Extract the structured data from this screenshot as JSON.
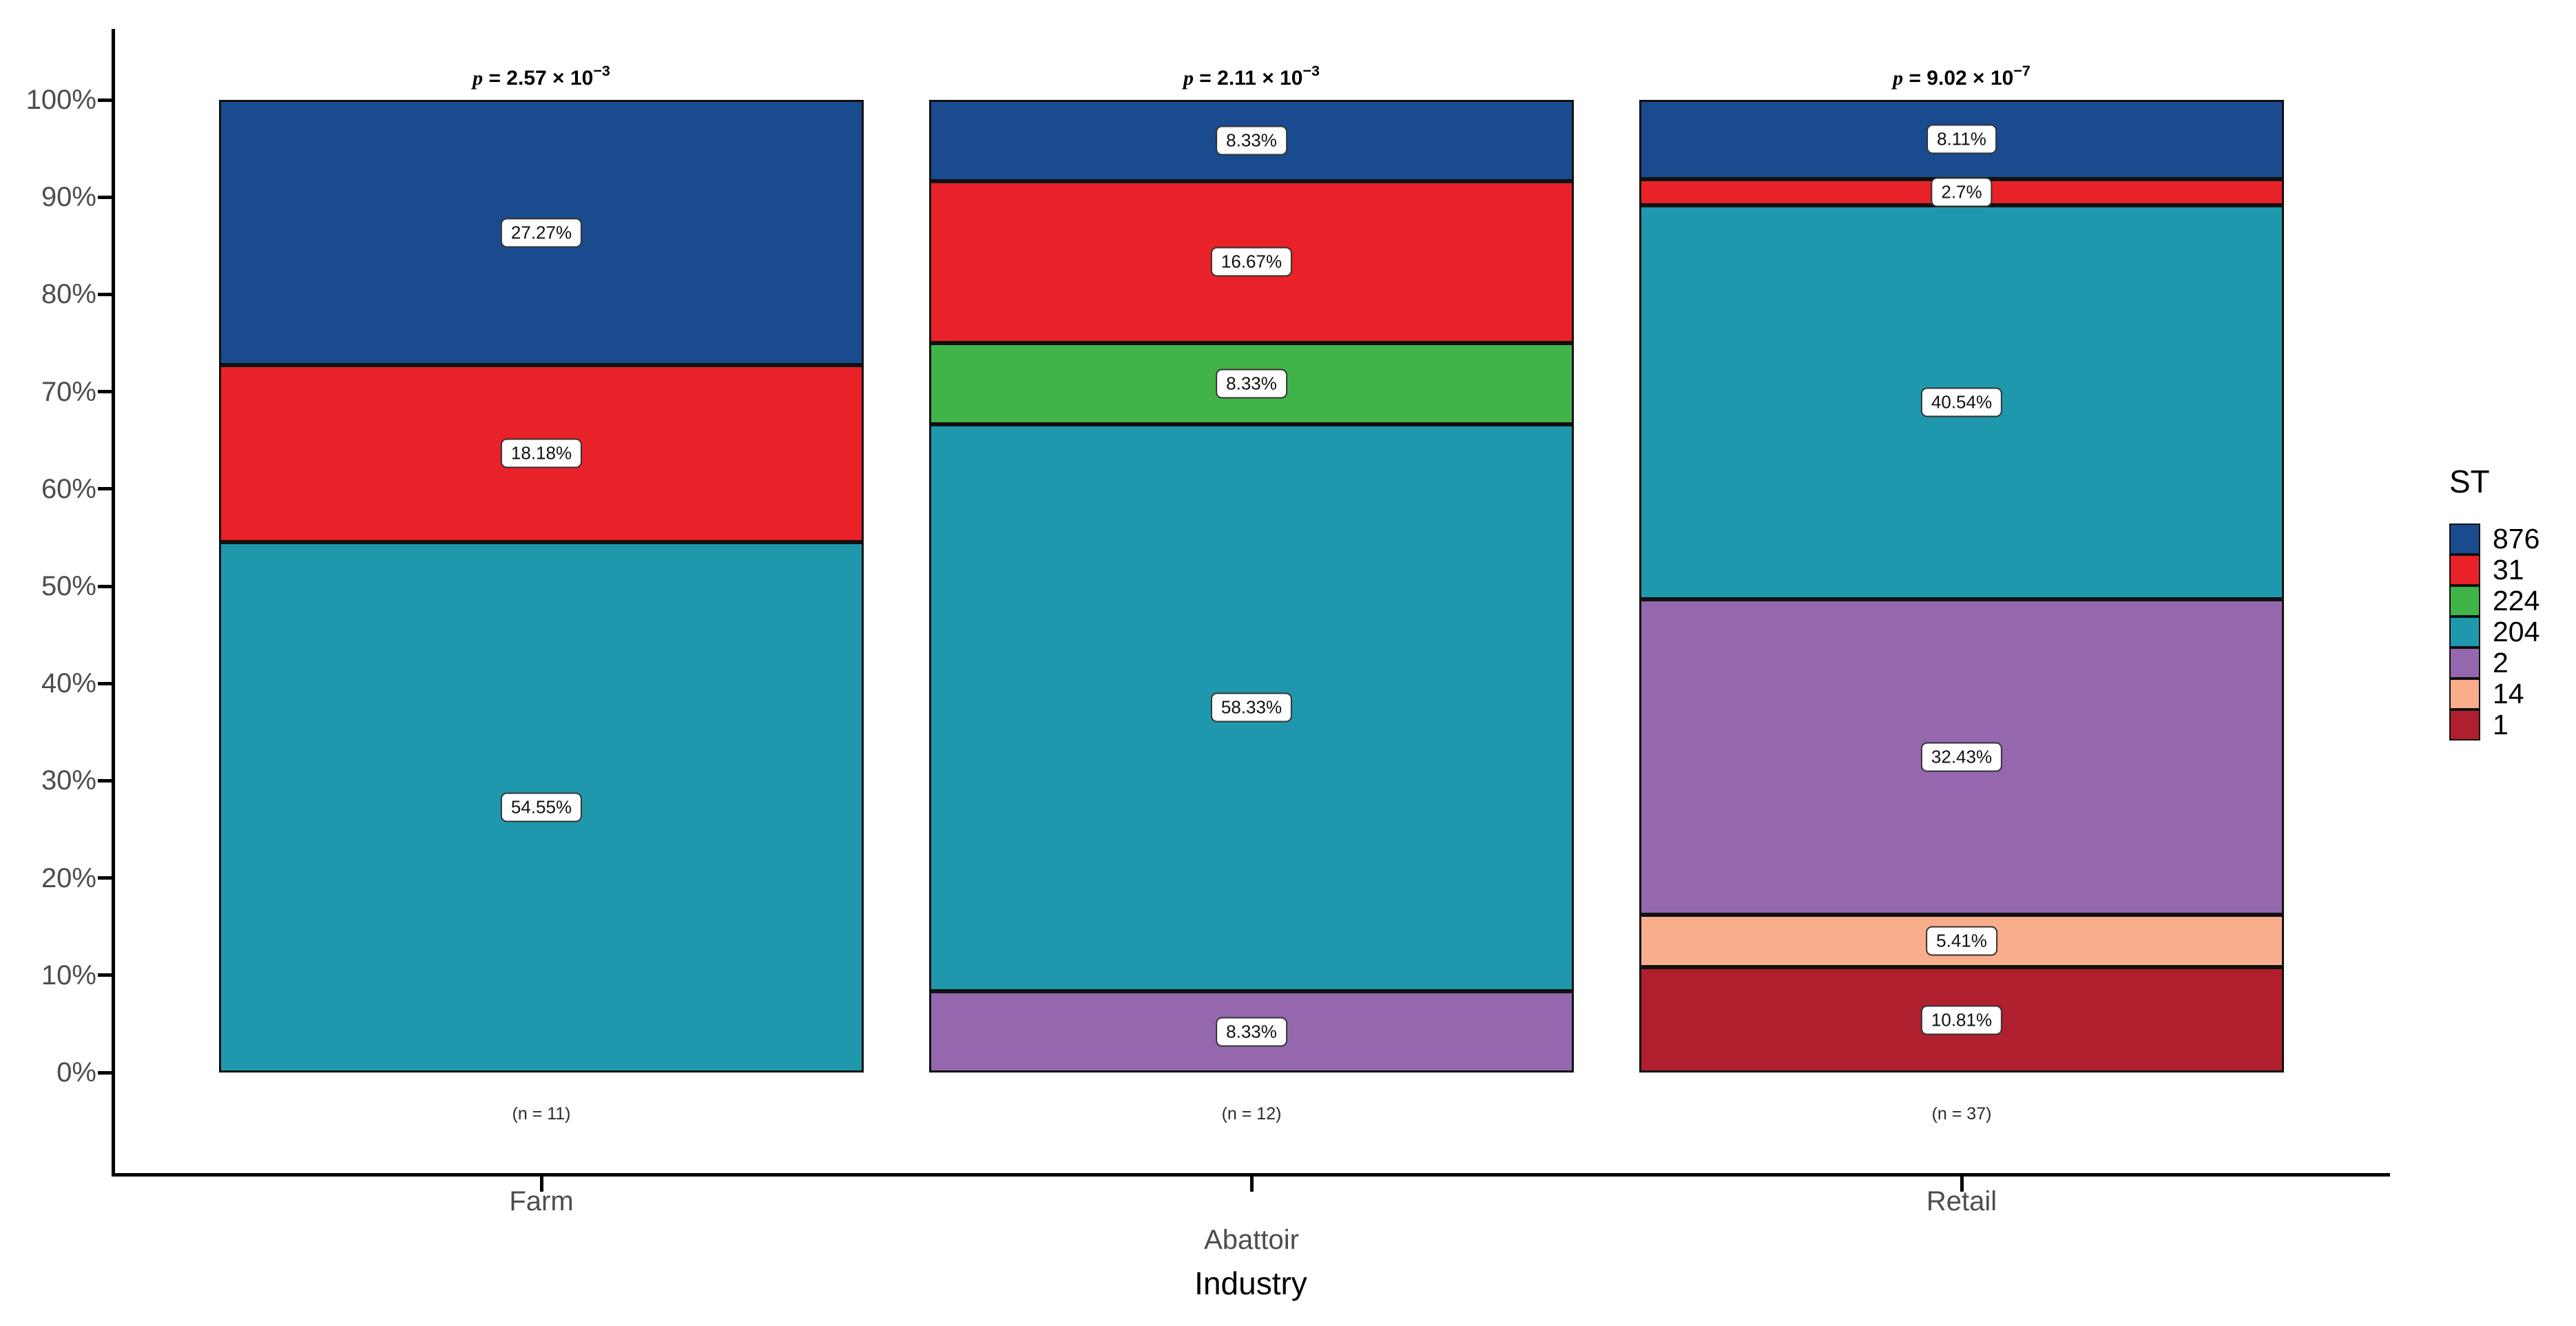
{
  "figure": {
    "background": "#FFFFFF"
  },
  "chart_data": {
    "type": "bar",
    "stacking": "percent",
    "orientation": "vertical",
    "title": "",
    "xlabel": "Industry",
    "ylabel": "",
    "ylim": [
      0,
      100
    ],
    "grid": "off",
    "legend_position": "right",
    "axis_color": "#000000",
    "tick_label_color": "#4D4D4D",
    "y_ticks": [
      {
        "value": 0,
        "label": "0%"
      },
      {
        "value": 10,
        "label": "10%"
      },
      {
        "value": 20,
        "label": "20%"
      },
      {
        "value": 30,
        "label": "30%"
      },
      {
        "value": 40,
        "label": "40%"
      },
      {
        "value": 50,
        "label": "50%"
      },
      {
        "value": 60,
        "label": "60%"
      },
      {
        "value": 70,
        "label": "70%"
      },
      {
        "value": 80,
        "label": "80%"
      },
      {
        "value": 90,
        "label": "90%"
      },
      {
        "value": 100,
        "label": "100%"
      }
    ],
    "categories": [
      {
        "name": "Farm",
        "n_label": "(n = 11)",
        "p_value": {
          "mantissa": "2.57",
          "exponent": "−3"
        }
      },
      {
        "name": "Abattoir",
        "n_label": "(n = 12)",
        "p_value": {
          "mantissa": "2.11",
          "exponent": "−3"
        }
      },
      {
        "name": "Retail",
        "n_label": "(n = 37)",
        "p_value": {
          "mantissa": "9.02",
          "exponent": "−7"
        }
      }
    ],
    "p_prefix": "p",
    "p_equals": " = ",
    "p_times_base": " × 10",
    "legend": {
      "title": "ST"
    },
    "series": [
      {
        "name": "876",
        "color": "#1A4B8F",
        "values": [
          27.27,
          8.33,
          8.11
        ],
        "labels": [
          "27.27%",
          "8.33%",
          "8.11%"
        ]
      },
      {
        "name": "31",
        "color": "#E92128",
        "values": [
          18.18,
          16.67,
          2.7
        ],
        "labels": [
          "18.18%",
          "16.67%",
          "2.7%"
        ]
      },
      {
        "name": "224",
        "color": "#41B449",
        "values": [
          0,
          8.33,
          0
        ],
        "labels": [
          null,
          "8.33%",
          null
        ]
      },
      {
        "name": "204",
        "color": "#1F98AE",
        "values": [
          54.55,
          58.33,
          40.54
        ],
        "labels": [
          "54.55%",
          "58.33%",
          "40.54%"
        ]
      },
      {
        "name": "2",
        "color": "#9467AE",
        "values": [
          0,
          8.33,
          32.43
        ],
        "labels": [
          null,
          "8.33%",
          "32.43%"
        ]
      },
      {
        "name": "14",
        "color": "#F9AD8B",
        "values": [
          0,
          0,
          5.41
        ],
        "labels": [
          null,
          null,
          "5.41%"
        ]
      },
      {
        "name": "1",
        "color": "#B01F2D",
        "values": [
          0,
          0,
          10.81
        ],
        "labels": [
          null,
          null,
          "10.81%"
        ]
      }
    ]
  }
}
